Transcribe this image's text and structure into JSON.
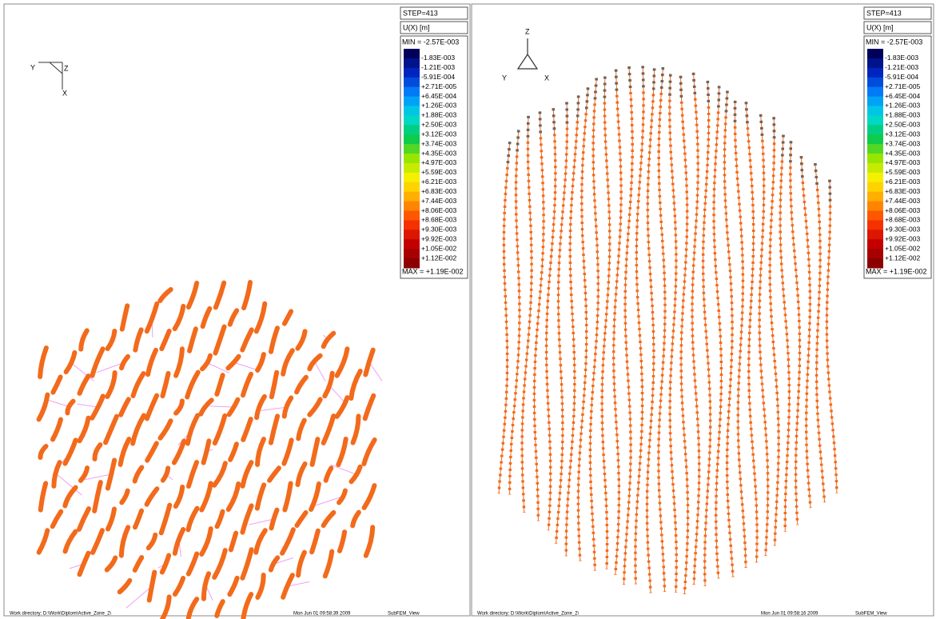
{
  "panels": [
    {
      "step": "STEP=413",
      "variable": "U(X) [m]",
      "legend": {
        "min": "MIN = -2.57E-003",
        "labels": [
          "-1.83E-003",
          "-1.21E-003",
          "-5.91E-004",
          "+2.71E-005",
          "+6.45E-004",
          "+1.26E-003",
          "+1.88E-003",
          "+2.50E-003",
          "+3.12E-003",
          "+3.74E-003",
          "+4.35E-003",
          "+4.97E-003",
          "+5.59E-003",
          "+6.21E-003",
          "+6.83E-003",
          "+7.44E-003",
          "+8.06E-003",
          "+8.68E-003",
          "+9.30E-003",
          "+9.92E-003",
          "+1.05E-002",
          "+1.12E-002"
        ],
        "max": "MAX = +1.19E-002"
      },
      "axes": {
        "a": "Y",
        "b": "Z",
        "c": "X"
      },
      "footer": {
        "directory": "Work directory: D:\\Work\\Diplom\\Active_Zone_2\\",
        "date": "Mon Jun 01 09:58:39 2009",
        "app": "SubFEM_View"
      }
    },
    {
      "step": "STEP=413",
      "variable": "U(X) [m]",
      "legend": {
        "min": "MIN = -2.57E-003",
        "labels": [
          "-1.83E-003",
          "-1.21E-003",
          "-5.91E-004",
          "+2.71E-005",
          "+6.45E-004",
          "+1.26E-003",
          "+1.88E-003",
          "+2.50E-003",
          "+3.12E-003",
          "+3.74E-003",
          "+4.35E-003",
          "+4.97E-003",
          "+5.59E-003",
          "+6.21E-003",
          "+6.83E-003",
          "+7.44E-003",
          "+8.06E-003",
          "+8.68E-003",
          "+9.30E-003",
          "+9.92E-003",
          "+1.05E-002",
          "+1.12E-002"
        ],
        "max": "MAX = +1.19E-002"
      },
      "axes": {
        "a": "Z",
        "b": "Y",
        "c": "X"
      },
      "footer": {
        "directory": "Work directory: D:\\Work\\Diplom\\Active_Zone_2\\",
        "date": "Mon Jun 01 09:58:16 2009",
        "app": "SubFEM_View"
      }
    }
  ]
}
